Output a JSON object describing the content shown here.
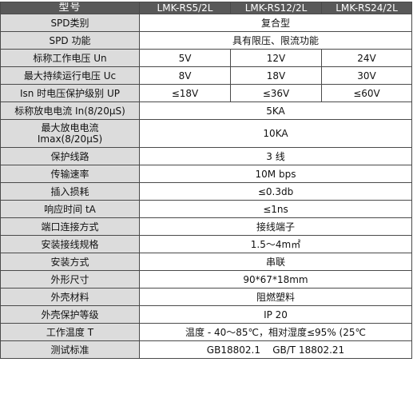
{
  "header": {
    "model_label": "型号",
    "models": [
      "LMK-RS5/2L",
      "LMK-RS12/2L",
      "LMK-RS24/2L"
    ]
  },
  "rows": {
    "spd_type": {
      "label": "SPD类别",
      "value": "复合型"
    },
    "spd_function": {
      "label": "SPD 功能",
      "value": "具有限压、限流功能"
    },
    "rated_voltage": {
      "label": "标称工作电压 Un",
      "values": [
        "5V",
        "12V",
        "24V"
      ]
    },
    "max_voltage": {
      "label": "最大持续运行电压 Uc",
      "values": [
        "8V",
        "18V",
        "30V"
      ]
    },
    "protection_level": {
      "label": "Isn 时电压保护级别 UP",
      "values": [
        "≤18V",
        "≤36V",
        "≤60V"
      ]
    },
    "nominal_current": {
      "label": "标称放电电流 In(8/20μS)",
      "value": "5KA"
    },
    "max_current": {
      "label_line1": "最大放电电流",
      "label_line2": "Imax(8/20μS)",
      "value": "10KA"
    },
    "protected_lines": {
      "label": "保护线路",
      "value": "3 线"
    },
    "transfer_rate": {
      "label": "传输速率",
      "value": "10M bps"
    },
    "insertion_loss": {
      "label": "插入损耗",
      "value": "≤0.3db"
    },
    "response_time": {
      "label": "响应时间 tA",
      "value": "≤1ns"
    },
    "port_connection": {
      "label": "端口连接方式",
      "value": "接线端子"
    },
    "wire_spec": {
      "label": "安装接线规格",
      "value": "1.5～4m㎡"
    },
    "install_method": {
      "label": "安装方式",
      "value": "串联"
    },
    "dimensions": {
      "label": "外形尺寸",
      "value": "90*67*18mm"
    },
    "shell_material": {
      "label": "外壳材料",
      "value": "阻燃塑料"
    },
    "shell_protection": {
      "label": "外壳保护等级",
      "value": "IP 20"
    },
    "operating_temp": {
      "label": "工作温度 T",
      "value": "温度 - 40～85℃，相对湿度≤95% (25℃"
    },
    "test_standard": {
      "label": "测试标准",
      "value": "GB18802.1    GB/T 18802.21"
    }
  }
}
